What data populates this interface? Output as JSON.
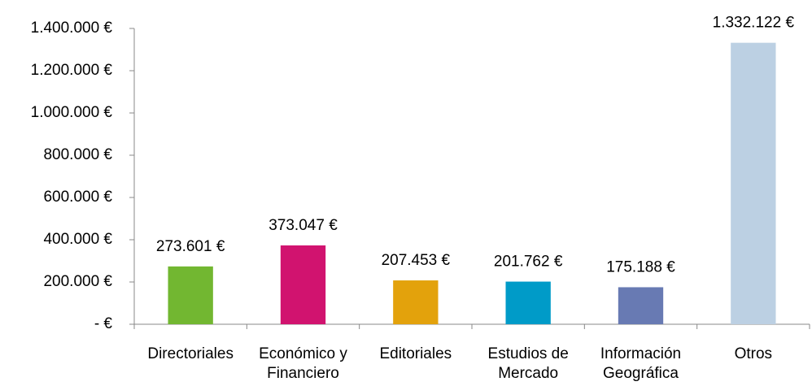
{
  "chart_data": {
    "type": "bar",
    "categories": [
      "Directoriales",
      "Económico y Financiero",
      "Editoriales",
      "Estudios de Mercado",
      "Información Geográfica",
      "Otros"
    ],
    "values": [
      273601,
      373047,
      207453,
      201762,
      175188,
      1332122
    ],
    "value_labels": [
      "273.601 €",
      "373.047 €",
      "207.453 €",
      "201.762 €",
      "175.188 €",
      "1.332.122 €"
    ],
    "colors": [
      "#72b731",
      "#d1136f",
      "#e3a20c",
      "#009bc8",
      "#687ab3",
      "#bcd0e3"
    ],
    "ylim": [
      0,
      1400000
    ],
    "yticks": [
      {
        "value": 0,
        "label": "-   €"
      },
      {
        "value": 200000,
        "label": "200.000 €"
      },
      {
        "value": 400000,
        "label": "400.000 €"
      },
      {
        "value": 600000,
        "label": "600.000 €"
      },
      {
        "value": 800000,
        "label": "800.000 €"
      },
      {
        "value": 1000000,
        "label": "1.000.000 €"
      },
      {
        "value": 1200000,
        "label": "1.200.000 €"
      },
      {
        "value": 1400000,
        "label": "1.400.000 €"
      }
    ],
    "grid": false
  }
}
